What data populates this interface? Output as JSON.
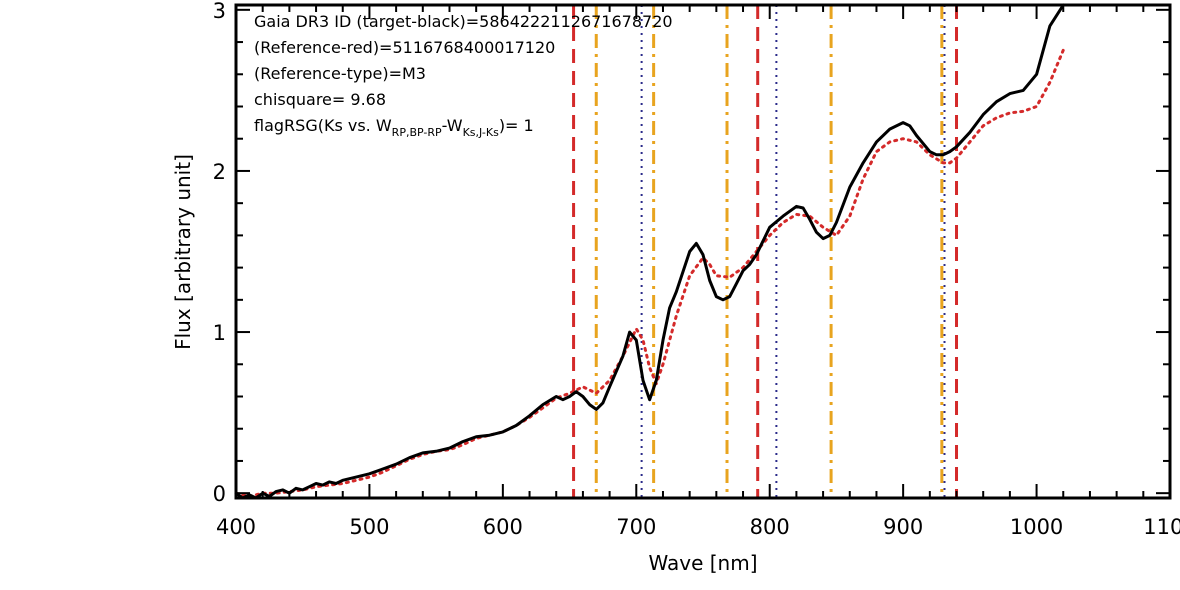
{
  "chart_data": {
    "type": "line",
    "title": "",
    "xlabel": "Wave [nm]",
    "ylabel": "Flux [arbitrary unit]",
    "xlim": [
      400,
      1100
    ],
    "ylim": [
      -0.03,
      3.03
    ],
    "x_ticks": [
      "400",
      "500",
      "600",
      "700",
      "800",
      "900",
      "1000",
      "1100"
    ],
    "y_ticks": [
      "0",
      "1",
      "2",
      "3"
    ],
    "grid": false,
    "annotations": {
      "line1": "Gaia DR3 ID (target-black)=5864222112671678720",
      "line2": "(Reference-red)=5116768400017120",
      "line3": "(Reference-type)=M3",
      "line4": "chisquare= 9.68",
      "line5_main": "flagRSG(Ks vs. W",
      "line5_sub1": "RP,BP-RP",
      "line5_mid": "-W",
      "line5_sub2": "Ks,J-Ks",
      "line5_end": ")= 1"
    },
    "series": [
      {
        "color": "#000000",
        "style": "solid",
        "x": [
          400,
          405,
          410,
          415,
          420,
          425,
          430,
          435,
          440,
          445,
          450,
          455,
          460,
          465,
          470,
          475,
          480,
          485,
          490,
          500,
          510,
          520,
          530,
          540,
          550,
          560,
          570,
          580,
          590,
          600,
          610,
          620,
          630,
          640,
          645,
          650,
          655,
          660,
          665,
          670,
          675,
          680,
          690,
          695,
          700,
          705,
          710,
          715,
          720,
          725,
          730,
          740,
          745,
          750,
          755,
          760,
          765,
          770,
          775,
          780,
          785,
          790,
          800,
          810,
          820,
          825,
          830,
          835,
          840,
          845,
          850,
          860,
          870,
          880,
          890,
          900,
          905,
          910,
          920,
          925,
          930,
          935,
          940,
          950,
          960,
          970,
          980,
          990,
          1000,
          1010,
          1020
        ],
        "values": [
          0.0,
          -0.03,
          -0.01,
          -0.03,
          0.0,
          -0.02,
          0.01,
          0.02,
          0.0,
          0.03,
          0.02,
          0.04,
          0.06,
          0.05,
          0.07,
          0.06,
          0.08,
          0.09,
          0.1,
          0.12,
          0.15,
          0.18,
          0.22,
          0.25,
          0.26,
          0.28,
          0.32,
          0.35,
          0.36,
          0.38,
          0.42,
          0.48,
          0.55,
          0.6,
          0.58,
          0.6,
          0.63,
          0.6,
          0.55,
          0.52,
          0.56,
          0.66,
          0.85,
          1.0,
          0.95,
          0.7,
          0.58,
          0.7,
          0.95,
          1.15,
          1.25,
          1.5,
          1.55,
          1.48,
          1.32,
          1.22,
          1.2,
          1.22,
          1.3,
          1.38,
          1.42,
          1.48,
          1.65,
          1.72,
          1.78,
          1.77,
          1.7,
          1.62,
          1.58,
          1.6,
          1.68,
          1.9,
          2.05,
          2.18,
          2.26,
          2.3,
          2.28,
          2.22,
          2.12,
          2.1,
          2.1,
          2.12,
          2.15,
          2.24,
          2.35,
          2.43,
          2.48,
          2.5,
          2.6,
          2.9,
          3.03
        ]
      },
      {
        "color": "#d42a2a",
        "style": "dotted",
        "x": [
          400,
          410,
          420,
          430,
          440,
          450,
          460,
          470,
          480,
          490,
          500,
          510,
          520,
          530,
          540,
          550,
          560,
          570,
          580,
          590,
          600,
          610,
          620,
          630,
          640,
          650,
          660,
          670,
          680,
          690,
          700,
          705,
          710,
          715,
          720,
          730,
          740,
          750,
          755,
          760,
          770,
          780,
          790,
          800,
          810,
          820,
          830,
          840,
          850,
          860,
          870,
          880,
          890,
          900,
          910,
          920,
          930,
          935,
          940,
          950,
          960,
          970,
          980,
          990,
          1000,
          1010,
          1020
        ],
        "values": [
          0.0,
          -0.02,
          0.0,
          0.0,
          0.01,
          0.02,
          0.04,
          0.05,
          0.06,
          0.08,
          0.1,
          0.13,
          0.17,
          0.21,
          0.24,
          0.26,
          0.27,
          0.3,
          0.34,
          0.36,
          0.38,
          0.42,
          0.47,
          0.53,
          0.59,
          0.62,
          0.66,
          0.62,
          0.7,
          0.85,
          1.02,
          0.95,
          0.78,
          0.68,
          0.8,
          1.1,
          1.35,
          1.46,
          1.42,
          1.35,
          1.34,
          1.4,
          1.5,
          1.6,
          1.68,
          1.73,
          1.72,
          1.65,
          1.6,
          1.72,
          1.95,
          2.12,
          2.18,
          2.2,
          2.18,
          2.1,
          2.05,
          2.05,
          2.08,
          2.18,
          2.28,
          2.33,
          2.36,
          2.37,
          2.4,
          2.55,
          2.75
        ]
      }
    ],
    "vlines": [
      {
        "x": 653,
        "color": "#d42a2a",
        "style": "dashed"
      },
      {
        "x": 670,
        "color": "#e8a41f",
        "style": "dashdot"
      },
      {
        "x": 704,
        "color": "#2b2b8a",
        "style": "dotted"
      },
      {
        "x": 713,
        "color": "#e8a41f",
        "style": "dashdot"
      },
      {
        "x": 768,
        "color": "#e8a41f",
        "style": "dashdot"
      },
      {
        "x": 791,
        "color": "#d42a2a",
        "style": "dashed"
      },
      {
        "x": 805,
        "color": "#2b2b8a",
        "style": "dotted"
      },
      {
        "x": 846,
        "color": "#e8a41f",
        "style": "dashdot"
      },
      {
        "x": 929,
        "color": "#e8a41f",
        "style": "dashdot"
      },
      {
        "x": 931,
        "color": "#2b2b8a",
        "style": "dotted"
      },
      {
        "x": 940,
        "color": "#d42a2a",
        "style": "dashed"
      }
    ]
  }
}
